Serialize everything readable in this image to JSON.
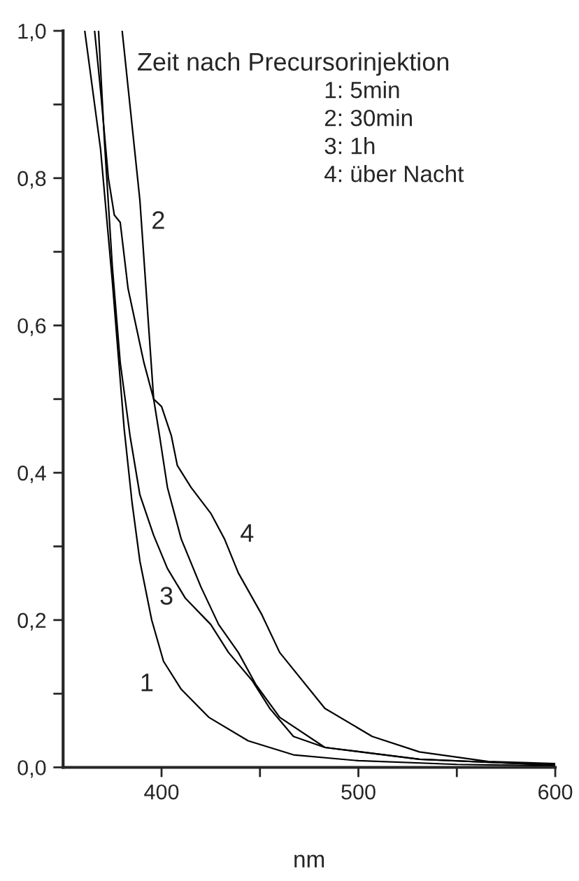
{
  "chart_data": {
    "type": "line",
    "xlabel": "nm",
    "xlim": [
      350,
      600
    ],
    "ylim": [
      0,
      1.0
    ],
    "xticks": [
      400,
      {
        "value": 450,
        "label": null
      },
      500,
      {
        "value": 550,
        "label": null
      },
      600
    ],
    "yticks": [
      {
        "value": 0,
        "label": "0,0"
      },
      {
        "value": 0.1,
        "label": null
      },
      {
        "value": 0.2,
        "label": "0,2"
      },
      {
        "value": 0.3,
        "label": null
      },
      {
        "value": 0.4,
        "label": "0,4"
      },
      {
        "value": 0.5,
        "label": null
      },
      {
        "value": 0.6,
        "label": "0,6"
      },
      {
        "value": 0.7,
        "label": null
      },
      {
        "value": 0.8,
        "label": "0,8"
      },
      {
        "value": 0.9,
        "label": null
      },
      {
        "value": 1.0,
        "label": "1,0"
      }
    ],
    "grid": false,
    "legend": false,
    "marker": "none",
    "line_style": "solid",
    "series": [
      {
        "color": "#000000",
        "x": [
          361,
          365,
          369,
          375,
          381,
          385,
          389,
          395,
          401,
          410,
          424,
          444,
          467,
          500,
          550,
          600
        ],
        "values": [
          1.0,
          0.92,
          0.84,
          0.66,
          0.46,
          0.36,
          0.28,
          0.2,
          0.144,
          0.106,
          0.068,
          0.036,
          0.017,
          0.009,
          0.004,
          0.002
        ]
      },
      {
        "color": "#000000",
        "x": [
          366,
          369,
          373,
          376,
          379,
          383,
          387,
          391,
          396,
          399,
          403,
          410,
          420,
          429,
          439,
          448,
          460,
          483,
          531,
          600
        ],
        "values": [
          1.0,
          0.92,
          0.8,
          0.75,
          0.74,
          0.65,
          0.6,
          0.55,
          0.5,
          0.45,
          0.38,
          0.31,
          0.245,
          0.194,
          0.156,
          0.112,
          0.068,
          0.027,
          0.011,
          0.003
        ]
      },
      {
        "color": "#000000",
        "x": [
          368,
          371,
          375,
          379,
          384,
          389,
          396,
          403,
          412,
          425,
          434,
          446,
          455,
          467,
          483,
          531,
          600
        ],
        "values": [
          1.0,
          0.85,
          0.68,
          0.55,
          0.45,
          0.37,
          0.315,
          0.27,
          0.23,
          0.194,
          0.156,
          0.118,
          0.08,
          0.042,
          0.027,
          0.011,
          0.003
        ]
      },
      {
        "color": "#000000",
        "x": [
          380,
          389,
          396,
          400,
          405,
          408,
          415,
          425,
          432,
          439,
          451,
          460,
          483,
          507,
          531,
          566,
          600
        ],
        "values": [
          1.0,
          0.77,
          0.5,
          0.49,
          0.45,
          0.41,
          0.38,
          0.345,
          0.31,
          0.264,
          0.207,
          0.156,
          0.08,
          0.042,
          0.021,
          0.008,
          0.005
        ]
      }
    ],
    "annotations": [
      {
        "text": "1",
        "x": 401,
        "y": 0.144
      },
      {
        "text": "2",
        "x": 379,
        "y": 0.74
      },
      {
        "text": "3",
        "x": 412,
        "y": 0.23
      },
      {
        "text": "4",
        "x": 432,
        "y": 0.31
      },
      "Zeit nach Precursorinjektion",
      "1: 5min",
      "2: 30min",
      "3: 1h",
      "4: über Nacht"
    ]
  }
}
